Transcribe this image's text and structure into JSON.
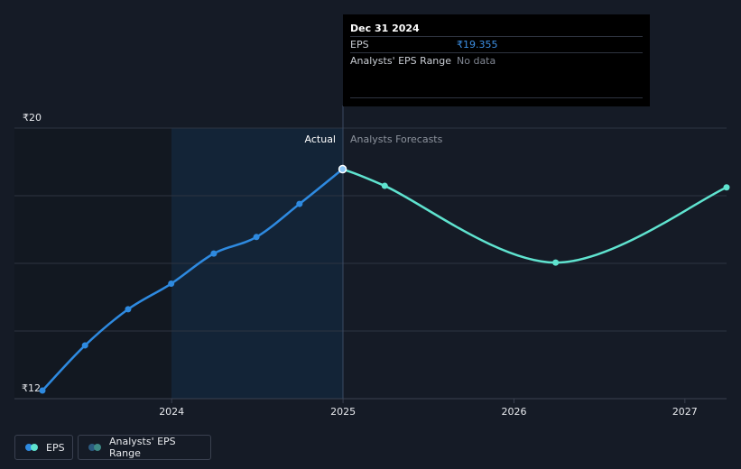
{
  "chart_data": {
    "type": "line",
    "y_axis_labels": {
      "top": "₹20",
      "bottom": "₹12"
    },
    "ylim": [
      12,
      20
    ],
    "xlim": [
      "2023-03-31",
      "2027-03-31"
    ],
    "x_ticks": [
      "2024",
      "2025",
      "2026",
      "2027"
    ],
    "grid": true,
    "divider_date": "2024-12-31",
    "region_labels": {
      "actual": "Actual",
      "forecast": "Analysts Forecasts"
    },
    "series": [
      {
        "name": "EPS",
        "role": "actual",
        "color": "#2e8ae0",
        "points": [
          {
            "x": "2023-03-31",
            "y": 12.0
          },
          {
            "x": "2023-06-30",
            "y": 13.5
          },
          {
            "x": "2023-09-30",
            "y": 14.7
          },
          {
            "x": "2023-12-31",
            "y": 15.55
          },
          {
            "x": "2024-03-31",
            "y": 16.55
          },
          {
            "x": "2024-06-30",
            "y": 17.1
          },
          {
            "x": "2024-09-30",
            "y": 18.2
          },
          {
            "x": "2024-12-31",
            "y": 19.355
          }
        ]
      },
      {
        "name": "EPS",
        "role": "forecast",
        "color": "#5fe3cf",
        "points": [
          {
            "x": "2024-12-31",
            "y": 19.355
          },
          {
            "x": "2025-03-31",
            "y": 18.8
          },
          {
            "x": "2026-03-31",
            "y": 16.25
          },
          {
            "x": "2027-03-31",
            "y": 18.75
          }
        ]
      }
    ]
  },
  "tooltip": {
    "date": "Dec 31 2024",
    "eps_label": "EPS",
    "eps_value": "₹19.355",
    "range_label": "Analysts' EPS Range",
    "range_value": "No data"
  },
  "legend": {
    "eps": "EPS",
    "range": "Analysts' EPS Range"
  },
  "colors": {
    "background": "#151b26",
    "actual_line": "#2e8ae0",
    "forecast_line": "#5fe3cf",
    "highlight_band": "#132437",
    "grid": "#2d3441"
  }
}
